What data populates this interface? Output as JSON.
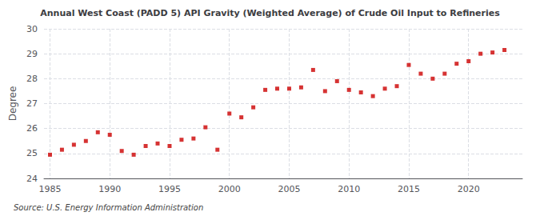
{
  "chart_data": {
    "type": "scatter",
    "title": "Annual West Coast (PADD 5) API Gravity (Weighted Average) of Crude Oil Input to Refineries",
    "ylabel": "Degree",
    "source": "Source: U.S. Energy Information Administration",
    "x": [
      1985,
      1986,
      1987,
      1988,
      1989,
      1990,
      1991,
      1992,
      1993,
      1994,
      1995,
      1996,
      1997,
      1998,
      1999,
      2000,
      2001,
      2002,
      2003,
      2004,
      2005,
      2006,
      2007,
      2008,
      2009,
      2010,
      2011,
      2012,
      2013,
      2014,
      2015,
      2016,
      2017,
      2018,
      2019,
      2020,
      2021,
      2022,
      2023
    ],
    "values": [
      24.95,
      25.15,
      25.35,
      25.5,
      25.85,
      25.75,
      25.1,
      24.95,
      25.3,
      25.4,
      25.3,
      25.55,
      25.6,
      26.05,
      25.15,
      26.6,
      26.45,
      26.85,
      27.55,
      27.6,
      27.6,
      27.65,
      28.35,
      27.5,
      27.9,
      27.55,
      27.45,
      27.3,
      27.6,
      27.7,
      28.55,
      28.2,
      28.0,
      28.2,
      28.6,
      28.7,
      29.0,
      29.05,
      29.15
    ],
    "color": "#cc0000",
    "marker": "square",
    "xlim": [
      1984.5,
      2024.5
    ],
    "ylim": [
      24,
      30
    ],
    "xticks": [
      1985,
      1990,
      1995,
      2000,
      2005,
      2010,
      2015,
      2020
    ],
    "yticks": [
      24,
      25,
      26,
      27,
      28,
      29,
      30
    ],
    "grid": true
  }
}
